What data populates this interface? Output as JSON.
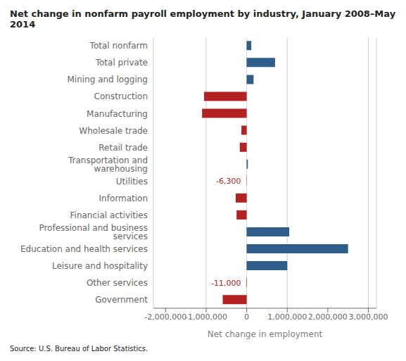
{
  "chart_data": {
    "type": "bar",
    "orientation": "horizontal",
    "title": "Net change in nonfarm payroll employment by industry, January 2008–May 2014",
    "xlabel": "Net change in employment",
    "source": "Source: U.S. Bureau of Labor Statistics.",
    "categories": [
      "Total nonfarm",
      "Total private",
      "Mining and logging",
      "Construction",
      "Manufacturing",
      "Wholesale trade",
      "Retail trade",
      "Transportation and warehousing",
      "Utilities",
      "Information",
      "Financial activities",
      "Professional and business services",
      "Education and health services",
      "Leisure and hospitality",
      "Other services",
      "Government"
    ],
    "values": [
      113000,
      700000,
      170000,
      -1050000,
      -1100000,
      -130000,
      -170000,
      30000,
      -6300,
      -270000,
      -250000,
      1050000,
      2500000,
      1000000,
      -11000,
      -590000
    ],
    "colors": [
      "#2e5f8a",
      "#2e5f8a",
      "#2e5f8a",
      "#b22222",
      "#b22222",
      "#b22222",
      "#b22222",
      "#2e5f8a",
      "#b22222",
      "#b22222",
      "#b22222",
      "#2e5f8a",
      "#2e5f8a",
      "#2e5f8a",
      "#b22222",
      "#b22222"
    ],
    "annotations": [
      {
        "category": "Utilities",
        "text": "-6,300",
        "color": "#b22222"
      },
      {
        "category": "Other services",
        "text": "-11,000",
        "color": "#b22222"
      }
    ],
    "xlim": [
      -2300000,
      3200000
    ],
    "xticks": [
      {
        "value": -2000000,
        "label": "-2,000,000"
      },
      {
        "value": -1000000,
        "label": "-1,000,000"
      },
      0,
      {
        "value": 1000000,
        "label": "1,000,000"
      },
      {
        "value": 2000000,
        "label": "2,000,000"
      },
      {
        "value": 3000000,
        "label": "3,000,000"
      }
    ],
    "grid": true
  }
}
